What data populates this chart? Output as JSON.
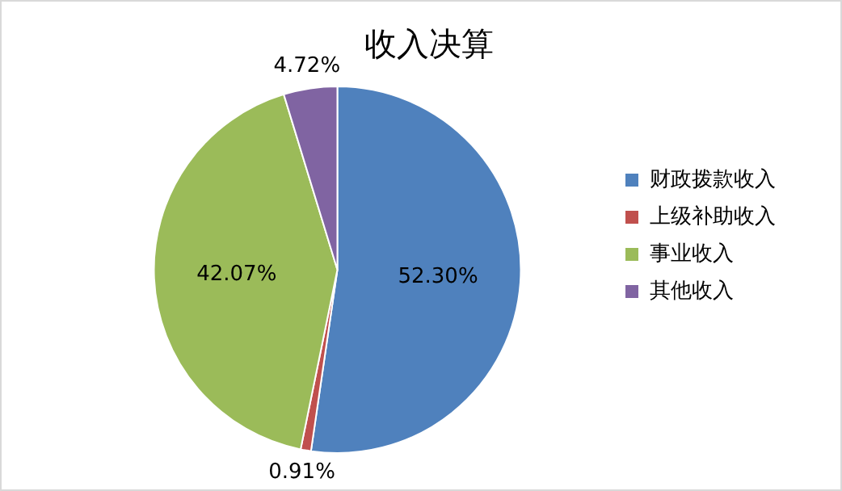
{
  "chart_data": {
    "type": "pie",
    "title": "收入决算",
    "categories": [
      "财政拨款收入",
      "上级补助收入",
      "事业收入",
      "其他收入"
    ],
    "values": [
      52.3,
      0.91,
      42.07,
      4.72
    ],
    "colors": [
      "#4f81bd",
      "#c0504d",
      "#9bbb59",
      "#8064a2"
    ],
    "value_labels": [
      "52.30%",
      "0.91%",
      "42.07%",
      "4.72%"
    ],
    "legend": "right"
  }
}
